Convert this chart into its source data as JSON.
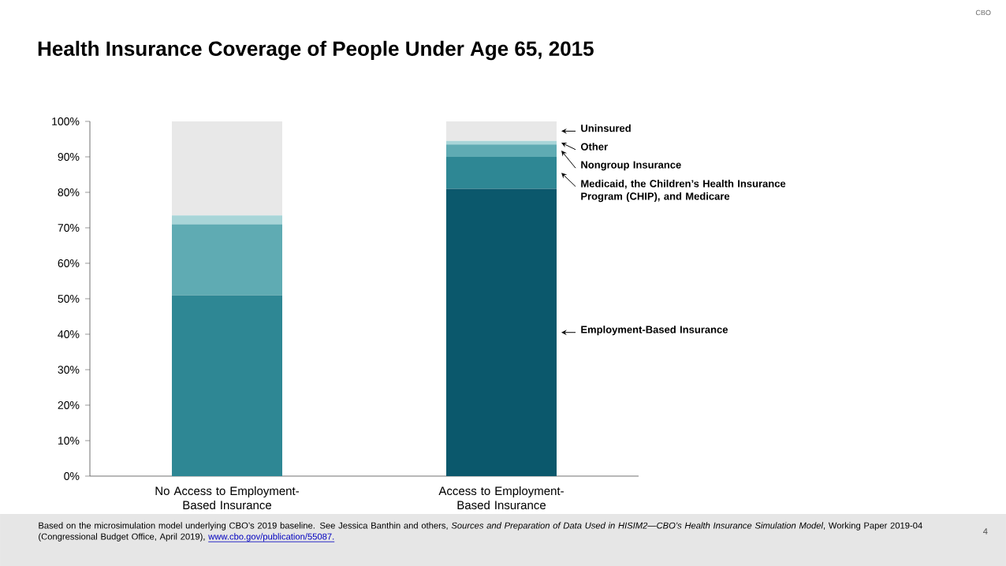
{
  "chart_data": {
    "type": "bar",
    "stacked": true,
    "title": "Health Insurance Coverage of People Under Age 65, 2015",
    "categories": [
      "No Access to Employment-Based Insurance",
      "Access to Employment-Based Insurance"
    ],
    "series": [
      {
        "name": "Employment-Based Insurance",
        "color": "#0b586c",
        "values": [
          0,
          81
        ]
      },
      {
        "name": "Medicaid, the Children’s Health Insurance Program (CHIP), and Medicare",
        "color": "#2e8794",
        "values": [
          51,
          9
        ]
      },
      {
        "name": "Nongroup Insurance",
        "color": "#5fabb3",
        "values": [
          20,
          3.5
        ]
      },
      {
        "name": "Other",
        "color": "#a8d5d8",
        "values": [
          2.5,
          1
        ]
      },
      {
        "name": "Uninsured",
        "color": "#e8e8e8",
        "values": [
          26.5,
          5.5
        ]
      }
    ],
    "ylim": [
      0,
      100
    ],
    "yticks": [
      {
        "value": 0,
        "label": "0%"
      },
      {
        "value": 10,
        "label": "10%"
      },
      {
        "value": 20,
        "label": "20%"
      },
      {
        "value": 30,
        "label": "30%"
      },
      {
        "value": 40,
        "label": "40%"
      },
      {
        "value": 50,
        "label": "50%"
      },
      {
        "value": 60,
        "label": "60%"
      },
      {
        "value": 70,
        "label": "70%"
      },
      {
        "value": 80,
        "label": "80%"
      },
      {
        "value": 90,
        "label": "90%"
      },
      {
        "value": 100,
        "label": "100%"
      }
    ],
    "grid": false,
    "legend": false,
    "annotations": [
      "Based on the microsimulation model underlying CBO’s 2019 baseline. See Jessica Banthin and others, *Sources and Preparation of Data Used in HISIM2—CBO’s Health Insurance Simulation Model*, Working Paper 2019-04 (Congressional Budget Office, April 2019),",
      "www.cbo.gov/publication/55087.",
      "4",
      "CBO"
    ]
  }
}
